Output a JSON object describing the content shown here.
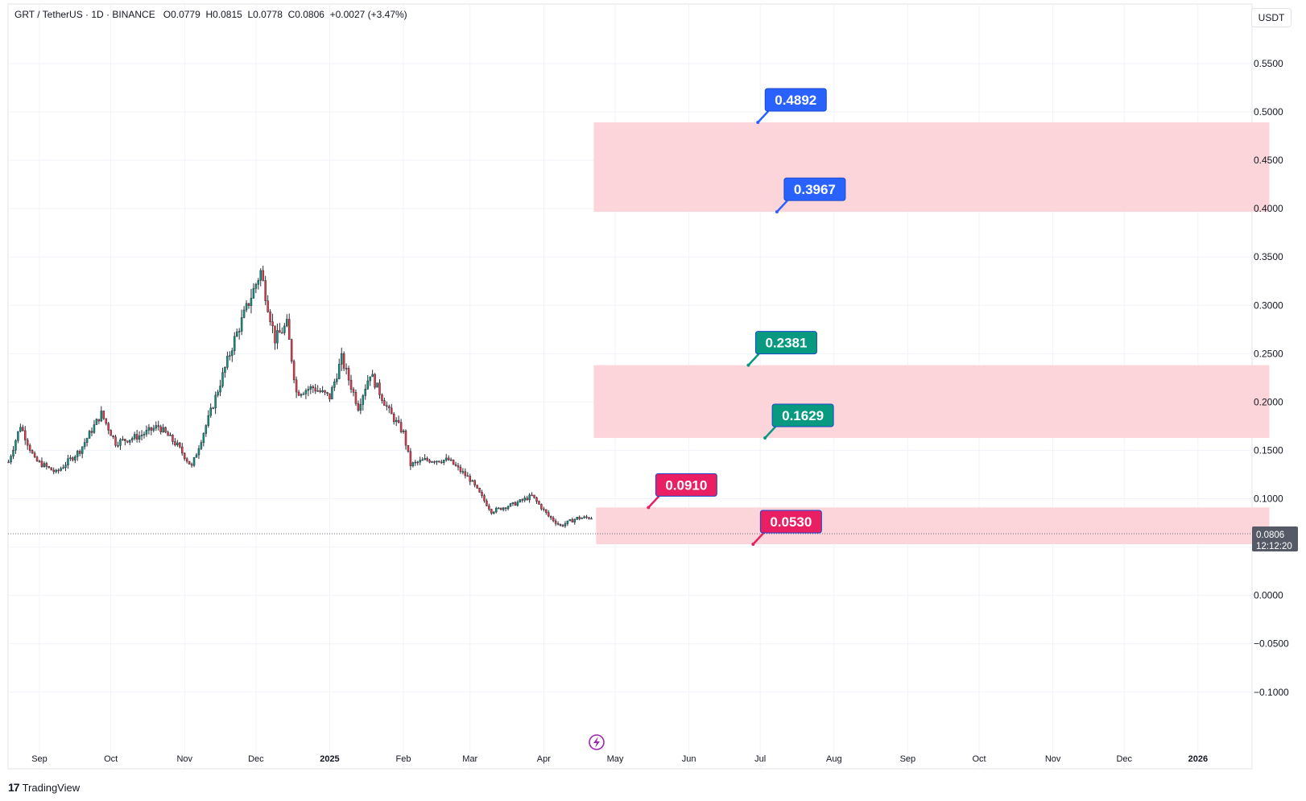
{
  "legend": {
    "symbol": "GRT / TetherUS · 1D · BINANCE",
    "open": "O0.0779",
    "high": "H0.0815",
    "low": "L0.0778",
    "close": "C0.0806",
    "change": "+0.0027 (+3.47%)"
  },
  "currency": "USDT",
  "brand": "TradingView",
  "last_price": {
    "value": "0.0806",
    "countdown": "12:12:20"
  },
  "colors": {
    "up": "#089981",
    "down": "#f23645",
    "zone_fill": "#fbd5d9",
    "label_blue": "#2962ff",
    "label_green": "#089981",
    "label_red": "#e91e63",
    "alert": "#9c27b0"
  },
  "chart_data": {
    "type": "candlestick",
    "symbol": "GRT/USDT",
    "interval": "1D",
    "y_ticks": [
      "0.5500",
      "0.5000",
      "0.4500",
      "0.4000",
      "0.3500",
      "0.3000",
      "0.2500",
      "0.2000",
      "0.1500",
      "0.1000",
      "0.0500",
      "0.0000",
      "−0.0500",
      "−0.1000"
    ],
    "ylim": [
      -0.13,
      0.61
    ],
    "x_ticks": [
      {
        "label": "Sep",
        "date": "2024-09-01"
      },
      {
        "label": "Oct",
        "date": "2024-10-01"
      },
      {
        "label": "Nov",
        "date": "2024-11-01"
      },
      {
        "label": "Dec",
        "date": "2024-12-01"
      },
      {
        "label": "2025",
        "date": "2025-01-01",
        "bold": true
      },
      {
        "label": "Feb",
        "date": "2025-02-01"
      },
      {
        "label": "Mar",
        "date": "2025-03-01"
      },
      {
        "label": "Apr",
        "date": "2025-04-01"
      },
      {
        "label": "May",
        "date": "2025-05-01"
      },
      {
        "label": "Jun",
        "date": "2025-06-01"
      },
      {
        "label": "Jul",
        "date": "2025-07-01"
      },
      {
        "label": "Aug",
        "date": "2025-08-01"
      },
      {
        "label": "Sep",
        "date": "2025-09-01"
      },
      {
        "label": "Oct",
        "date": "2025-10-01"
      },
      {
        "label": "Nov",
        "date": "2025-11-01"
      },
      {
        "label": "Dec",
        "date": "2025-12-01"
      },
      {
        "label": "2026",
        "date": "2026-01-01",
        "bold": true
      }
    ],
    "price_path": [
      {
        "date": "2024-08-19",
        "close": 0.138
      },
      {
        "date": "2024-08-24",
        "close": 0.176
      },
      {
        "date": "2024-08-30",
        "close": 0.14
      },
      {
        "date": "2024-09-08",
        "close": 0.127
      },
      {
        "date": "2024-09-18",
        "close": 0.15
      },
      {
        "date": "2024-09-27",
        "close": 0.188
      },
      {
        "date": "2024-10-03",
        "close": 0.158
      },
      {
        "date": "2024-10-13",
        "close": 0.165
      },
      {
        "date": "2024-10-21",
        "close": 0.175
      },
      {
        "date": "2024-10-29",
        "close": 0.155
      },
      {
        "date": "2024-11-04",
        "close": 0.133
      },
      {
        "date": "2024-11-12",
        "close": 0.19
      },
      {
        "date": "2024-11-22",
        "close": 0.265
      },
      {
        "date": "2024-12-03",
        "close": 0.335
      },
      {
        "date": "2024-12-09",
        "close": 0.265
      },
      {
        "date": "2024-12-14",
        "close": 0.28
      },
      {
        "date": "2024-12-18",
        "close": 0.21
      },
      {
        "date": "2024-12-25",
        "close": 0.215
      },
      {
        "date": "2025-01-01",
        "close": 0.205
      },
      {
        "date": "2025-01-06",
        "close": 0.245
      },
      {
        "date": "2025-01-13",
        "close": 0.195
      },
      {
        "date": "2025-01-18",
        "close": 0.23
      },
      {
        "date": "2025-01-26",
        "close": 0.19
      },
      {
        "date": "2025-02-01",
        "close": 0.168
      },
      {
        "date": "2025-02-04",
        "close": 0.135
      },
      {
        "date": "2025-02-10",
        "close": 0.14
      },
      {
        "date": "2025-02-20",
        "close": 0.14
      },
      {
        "date": "2025-03-01",
        "close": 0.12
      },
      {
        "date": "2025-03-10",
        "close": 0.087
      },
      {
        "date": "2025-03-20",
        "close": 0.095
      },
      {
        "date": "2025-03-27",
        "close": 0.103
      },
      {
        "date": "2025-04-03",
        "close": 0.082
      },
      {
        "date": "2025-04-08",
        "close": 0.072
      },
      {
        "date": "2025-04-15",
        "close": 0.08
      },
      {
        "date": "2025-04-21",
        "close": 0.0806
      }
    ],
    "zones": [
      {
        "top": 0.4892,
        "bottom": 0.3967,
        "start": "2025-04-22",
        "end": "2026-01-31"
      },
      {
        "top": 0.2381,
        "bottom": 0.1629,
        "start": "2025-04-22",
        "end": "2026-01-31"
      },
      {
        "top": 0.091,
        "bottom": 0.053,
        "start": "2025-04-23",
        "end": "2026-01-31"
      }
    ],
    "level_labels": [
      {
        "text": "0.4892",
        "value": 0.4892,
        "date": "2025-06-30",
        "color": "blue"
      },
      {
        "text": "0.3967",
        "value": 0.3967,
        "date": "2025-07-08",
        "color": "blue"
      },
      {
        "text": "0.2381",
        "value": 0.2381,
        "date": "2025-06-26",
        "color": "green"
      },
      {
        "text": "0.1629",
        "value": 0.1629,
        "date": "2025-07-03",
        "color": "green"
      },
      {
        "text": "0.0910",
        "value": 0.091,
        "date": "2025-05-15",
        "color": "red"
      },
      {
        "text": "0.0530",
        "value": 0.053,
        "date": "2025-06-28",
        "color": "red"
      }
    ]
  }
}
